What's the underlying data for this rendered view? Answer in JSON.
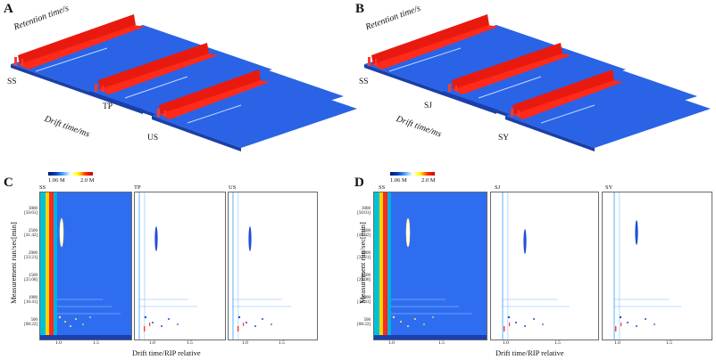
{
  "panels": {
    "a": {
      "letter": "A",
      "retention_label": "Retention time/s",
      "drift_label": "Drift time/ms",
      "samples": [
        "SS",
        "TP",
        "US"
      ]
    },
    "b": {
      "letter": "B",
      "retention_label": "Retention time/s",
      "drift_label": "Drift time/ms",
      "samples": [
        "SS",
        "SJ",
        "SY"
      ]
    },
    "c": {
      "letter": "C",
      "samples": [
        "SS",
        "TP",
        "US"
      ],
      "colorbar_min": "1.06 M",
      "colorbar_max": "2.0 M"
    },
    "d": {
      "letter": "D",
      "samples": [
        "SS",
        "SJ",
        "SY"
      ],
      "colorbar_min": "1.06 M",
      "colorbar_max": "2.0 M"
    }
  },
  "axes": {
    "y_title": "Measurement run/sec[min]",
    "x_title": "Drift time/RIP relative",
    "y_ticks": [
      {
        "value": "3000",
        "sub": "[50:01]"
      },
      {
        "value": "2500",
        "sub": "[41:42]"
      },
      {
        "value": "2000",
        "sub": "[33:21]"
      },
      {
        "value": "1500",
        "sub": "[25:00]"
      },
      {
        "value": "1000",
        "sub": "[16:41]"
      },
      {
        "value": "500",
        "sub": "[08:22]"
      }
    ],
    "x_ticks": [
      "1.0",
      "1.5"
    ]
  },
  "colors": {
    "blue": "#1f4fd6",
    "red": "#ff2a1a",
    "bg_blue": "#2f6df0"
  }
}
